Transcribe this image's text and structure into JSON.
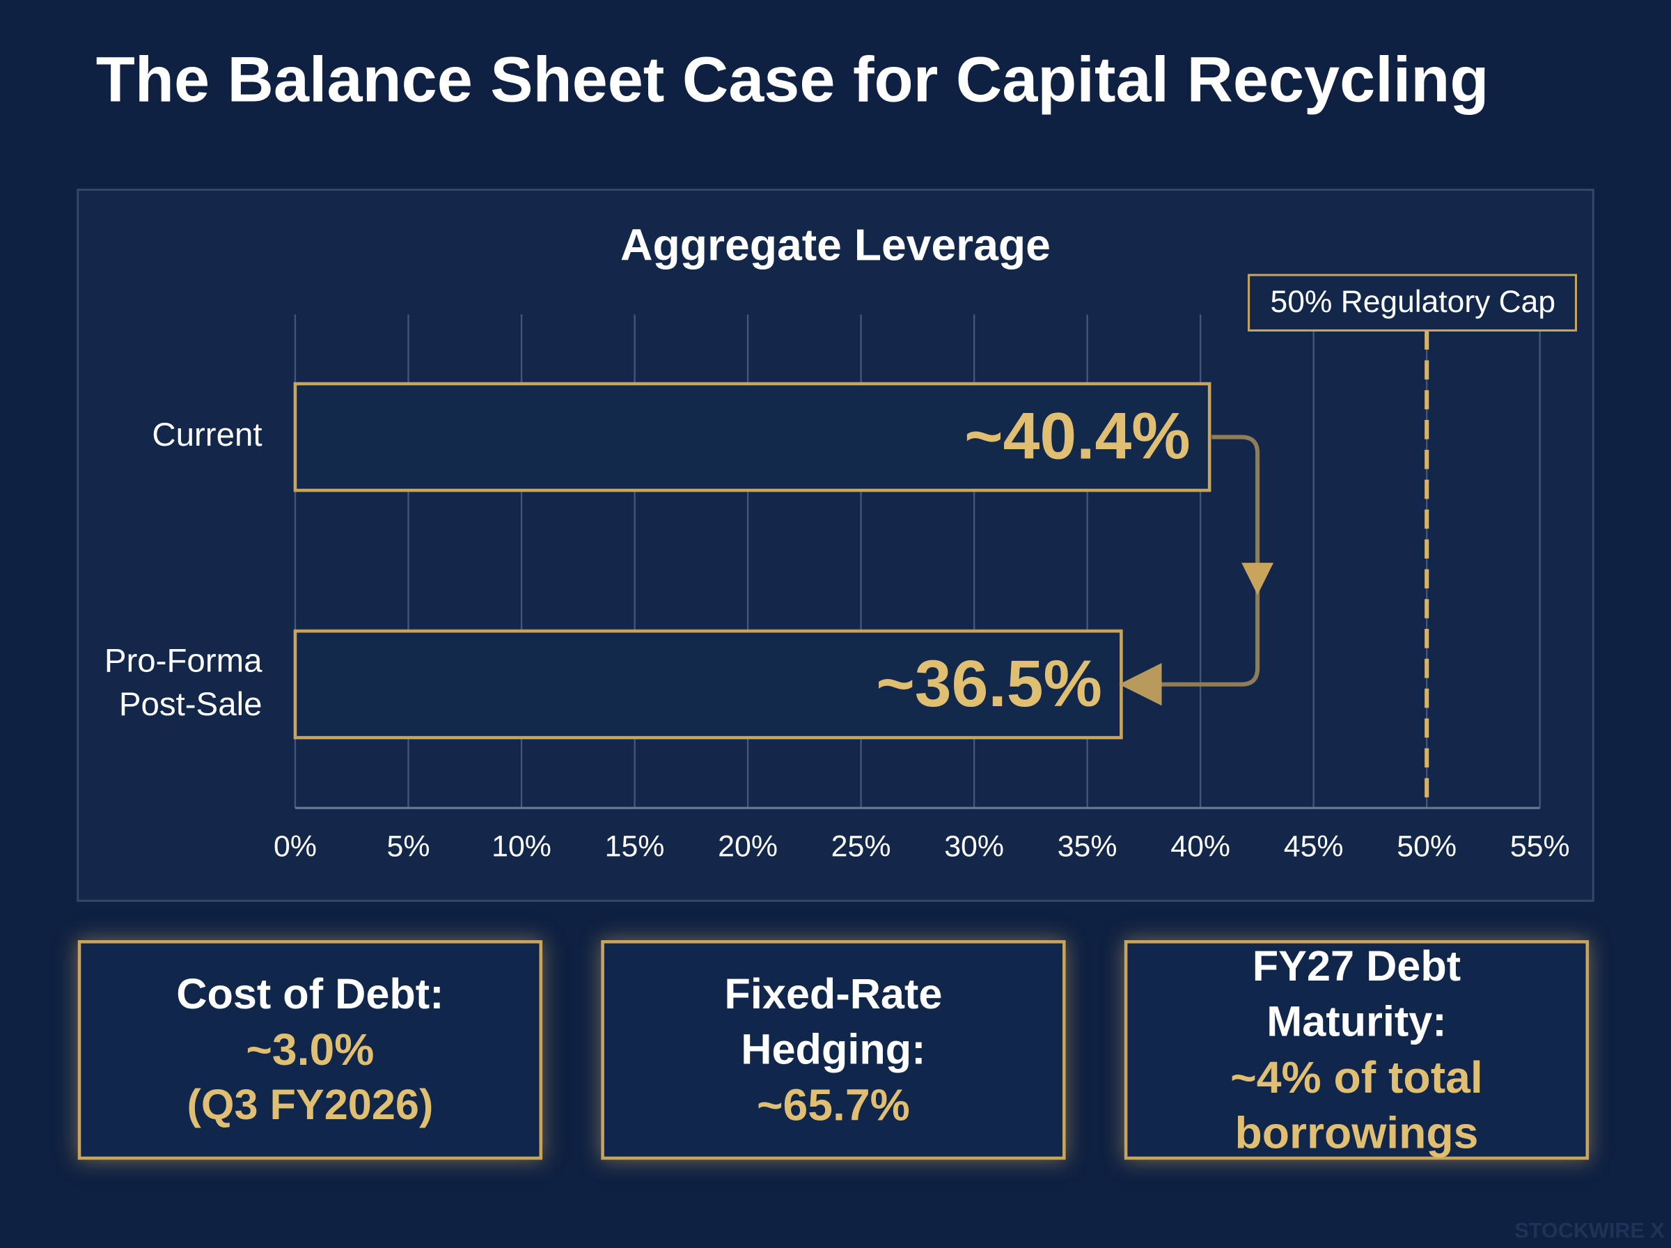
{
  "title": "The Balance Sheet Case for Capital Recycling",
  "chart_data": {
    "type": "barh",
    "title": "Aggregate Leverage",
    "categories": [
      "Current",
      "Pro-Forma Post-Sale"
    ],
    "values": [
      40.4,
      36.5
    ],
    "value_labels": [
      "~40.4%",
      "~36.5%"
    ],
    "color": "#c9a45c",
    "xlim": [
      0,
      55
    ],
    "xticks": [
      {
        "value": 0,
        "label": "0%"
      },
      {
        "value": 5,
        "label": "5%"
      },
      {
        "value": 10,
        "label": "10%"
      },
      {
        "value": 15,
        "label": "15%"
      },
      {
        "value": 20,
        "label": "20%"
      },
      {
        "value": 25,
        "label": "25%"
      },
      {
        "value": 30,
        "label": "30%"
      },
      {
        "value": 35,
        "label": "35%"
      },
      {
        "value": 40,
        "label": "40%"
      },
      {
        "value": 45,
        "label": "45%"
      },
      {
        "value": 50,
        "label": "50%"
      },
      {
        "value": 55,
        "label": "55%"
      }
    ],
    "grid": true,
    "reference_line": {
      "value": 50,
      "label": "50% Regulatory Cap"
    }
  },
  "cards": [
    {
      "label": "Cost of Debt:",
      "value": "~3.0%",
      "note": "(Q3 FY2026)"
    },
    {
      "label": "Fixed-Rate Hedging:",
      "value": "~65.7%"
    },
    {
      "label": "FY27 Debt Maturity:",
      "value": "~4% of total borrowings"
    }
  ],
  "watermark": "STOCKWIRE X"
}
